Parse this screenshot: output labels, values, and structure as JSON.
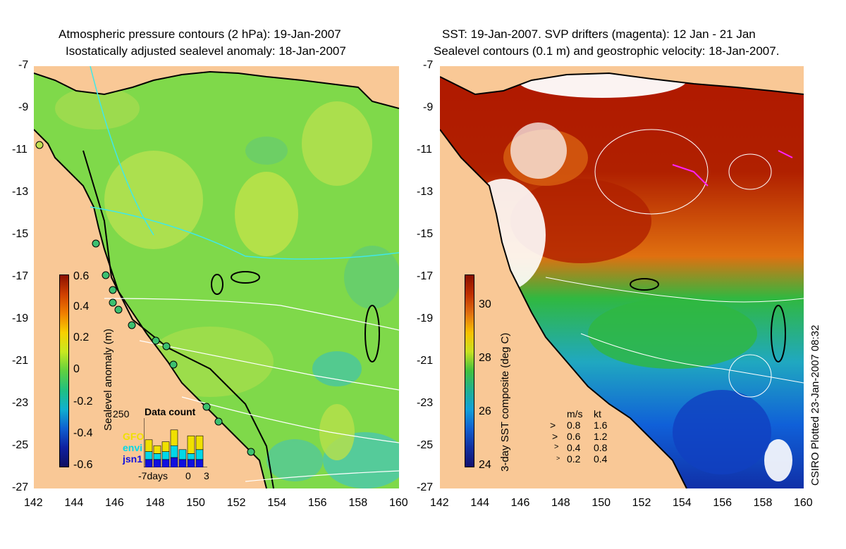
{
  "left_panel": {
    "title_line1": "Atmospheric pressure contours (2 hPa): 19-Jan-2007",
    "title_line2": "Isostatically adjusted sealevel anomaly: 18-Jan-2007",
    "colorbar_label": "Sealevel anomaly (m)",
    "colorbar_ticks": [
      "0.6",
      "0.4",
      "0.2",
      "0",
      "-0.2",
      "-0.4",
      "-0.6"
    ],
    "inset": {
      "title": "Data count",
      "y_max_label": "250",
      "legend": [
        {
          "name": "GFO",
          "color": "#f0e000"
        },
        {
          "name": "envi",
          "color": "#00d8e8"
        },
        {
          "name": "jsn1",
          "color": "#1010e0"
        }
      ],
      "x_left_label": "-7days",
      "x_zero_label": "0",
      "x_right_label": "3",
      "bars": [
        {
          "jsn1": 40,
          "envi": 40,
          "gfo": 60
        },
        {
          "jsn1": 40,
          "envi": 30,
          "gfo": 40
        },
        {
          "jsn1": 40,
          "envi": 40,
          "gfo": 50
        },
        {
          "jsn1": 50,
          "envi": 60,
          "gfo": 80
        },
        {
          "jsn1": 40,
          "envi": 50,
          "gfo": 0
        },
        {
          "jsn1": 40,
          "envi": 30,
          "gfo": 90
        },
        {
          "jsn1": 40,
          "envi": 50,
          "gfo": 70
        }
      ]
    }
  },
  "right_panel": {
    "title_line1": "SST: 19-Jan-2007. SVP drifters (magenta): 12 Jan - 21 Jan",
    "title_line2": "Sealevel contours (0.1 m) and geostrophic velocity: 18-Jan-2007.",
    "colorbar_label": "3-day SST composite (deg C)",
    "colorbar_ticks": [
      "30",
      "28",
      "26",
      "24"
    ],
    "velocity_legend": {
      "header_ms": "m/s",
      "header_kt": "kt",
      "rows": [
        {
          "ms": "0.8",
          "kt": "1.6"
        },
        {
          "ms": "0.6",
          "kt": "1.2"
        },
        {
          "ms": "0.4",
          "kt": "0.8"
        },
        {
          "ms": "0.2",
          "kt": "0.4"
        }
      ]
    }
  },
  "y_axis_labels": [
    "-7",
    "-9",
    "-11",
    "-13",
    "-15",
    "-17",
    "-19",
    "-21",
    "-23",
    "-25",
    "-27"
  ],
  "x_axis_labels": [
    "142",
    "144",
    "146",
    "148",
    "150",
    "152",
    "154",
    "156",
    "158",
    "160"
  ],
  "credit": "CSIRO Plotted 23-Jan-2007 08:32",
  "colors": {
    "land": "#f9c896",
    "ocean_left": "#7ed84a",
    "sst_warm": "#b01800",
    "sst_cool": "#1060d8"
  }
}
